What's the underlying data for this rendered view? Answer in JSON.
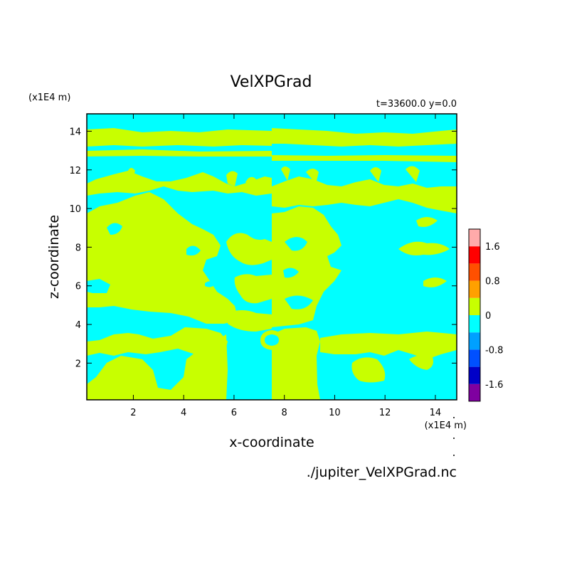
{
  "chart_data": {
    "type": "heatmap",
    "title": "VelXPGrad",
    "subtitle": "t=33600.0 y=0.0",
    "xlabel": "x-coordinate",
    "ylabel": "z-coordinate",
    "x_unit": "(x1E4 m)",
    "y_unit": "(x1E4 m)",
    "footer": "./jupiter_VelXPGrad.nc",
    "xlim": [
      0.15,
      14.85
    ],
    "ylim": [
      0.1,
      14.9
    ],
    "x_ticks": [
      2,
      4,
      6,
      8,
      10,
      12,
      14
    ],
    "y_ticks": [
      2,
      4,
      6,
      8,
      10,
      12,
      14
    ],
    "x_tick_labels": [
      "2",
      "4",
      "6",
      "8",
      "10",
      "12",
      "14"
    ],
    "y_tick_labels": [
      "2",
      "4",
      "6",
      "8",
      "10",
      "12",
      "14"
    ],
    "colorbar": {
      "levels": [
        -2.0,
        -1.6,
        -1.2,
        -0.8,
        -0.4,
        0,
        0.4,
        0.8,
        1.2,
        1.6,
        2.0
      ],
      "colors": [
        "#7f00a0",
        "#0000c8",
        "#0050ff",
        "#00a0ff",
        "#00ffff",
        "#c8ff00",
        "#ffa000",
        "#ff5000",
        "#ff0000",
        "#ffaaaa"
      ],
      "tick_values": [
        -1.6,
        -0.8,
        0,
        0.8,
        1.6
      ],
      "tick_labels": [
        "-1.6",
        "-0.8",
        "0",
        "0.8",
        "1.6"
      ]
    },
    "fill_colors": {
      "negative": "#00ffff",
      "positive": "#c8ff00"
    },
    "regions": [
      {
        "sign": "positive",
        "x": [
          0.15,
          7.5
        ],
        "y": [
          0.1,
          2.3
        ]
      },
      {
        "sign": "positive",
        "x": [
          0.15,
          4.5
        ],
        "y": [
          2.3,
          4.0
        ]
      },
      {
        "sign": "positive",
        "x": [
          0.15,
          6.0
        ],
        "y": [
          5.0,
          10.5
        ]
      },
      {
        "sign": "negative",
        "x": [
          6.0,
          7.5
        ],
        "y": [
          4.0,
          10.5
        ]
      },
      {
        "sign": "positive",
        "x": [
          0.15,
          7.5
        ],
        "y": [
          12.3,
          13.2
        ]
      },
      {
        "sign": "positive",
        "x": [
          0.15,
          7.5
        ],
        "y": [
          13.5,
          14.9
        ]
      },
      {
        "sign": "negative",
        "x": [
          7.5,
          14.85
        ],
        "y": [
          0.1,
          3.0
        ]
      },
      {
        "sign": "negative",
        "x": [
          10.5,
          14.85
        ],
        "y": [
          3.0,
          10.5
        ]
      },
      {
        "sign": "positive",
        "x": [
          7.5,
          10.5
        ],
        "y": [
          4.0,
          10.5
        ]
      },
      {
        "sign": "positive",
        "x": [
          7.5,
          14.85
        ],
        "y": [
          10.5,
          12.3
        ]
      },
      {
        "sign": "positive",
        "x": [
          7.5,
          14.85
        ],
        "y": [
          13.2,
          13.8
        ]
      }
    ]
  }
}
